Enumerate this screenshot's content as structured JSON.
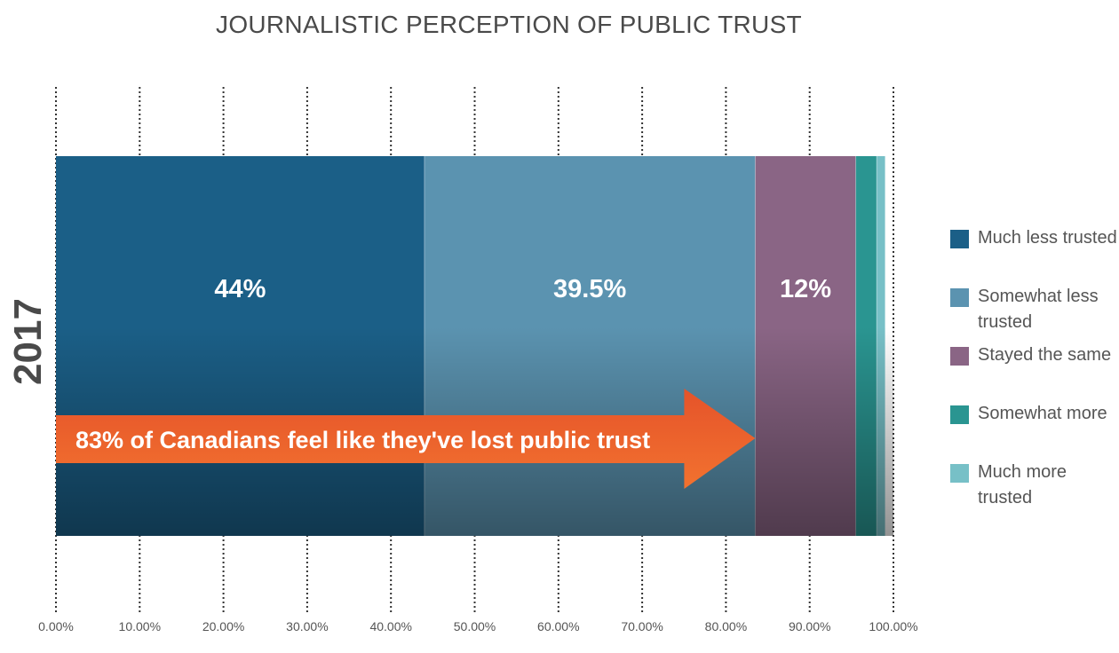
{
  "chart_data": {
    "type": "bar",
    "orientation": "horizontal",
    "stacked": true,
    "title": "JOURNALISTIC PERCEPTION OF PUBLIC TRUST",
    "categories": [
      "2017"
    ],
    "series": [
      {
        "name": "Much less trusted",
        "values": [
          44
        ],
        "label": "44%",
        "color": "#1b5f87"
      },
      {
        "name": "Somewhat less trusted",
        "values": [
          39.5
        ],
        "label": "39.5%",
        "color": "#5b93b0"
      },
      {
        "name": "Stayed the same",
        "values": [
          12
        ],
        "label": "12%",
        "color": "#8a6585"
      },
      {
        "name": "Somewhat more",
        "values": [
          2.5
        ],
        "label": "",
        "color": "#2a9591"
      },
      {
        "name": "Much more trusted",
        "values": [
          1
        ],
        "label": "",
        "color": "#77c0c7"
      }
    ],
    "xlim": [
      0,
      100
    ],
    "xticks": [
      "0.00%",
      "10.00%",
      "20.00%",
      "30.00%",
      "40.00%",
      "50.00%",
      "60.00%",
      "70.00%",
      "80.00%",
      "90.00%",
      "100.00%"
    ],
    "grid": true,
    "legend_position": "right",
    "annotation": {
      "text": "83% of Canadians feel like they've lost public trust",
      "color": "#ee6a33"
    }
  }
}
